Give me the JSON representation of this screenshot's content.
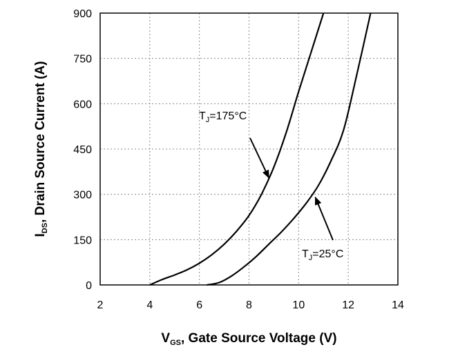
{
  "chart_data": {
    "type": "line",
    "title": "",
    "xlabel": {
      "main": "V",
      "sub": "GS",
      "rest": ", Gate Source Voltage (V)"
    },
    "ylabel": {
      "main": "I",
      "sub": "DS",
      "rest": ", Drain Source Current (A)"
    },
    "xlim": [
      2,
      14
    ],
    "ylim": [
      0,
      900
    ],
    "xticks": [
      "2",
      "4",
      "6",
      "8",
      "10",
      "12",
      "14"
    ],
    "yticks": [
      "0",
      "150",
      "300",
      "450",
      "600",
      "750",
      "900"
    ],
    "grid": true,
    "legend": "none",
    "series": [
      {
        "name": "TJ=175°C",
        "x": [
          4.0,
          4.5,
          5.0,
          5.5,
          6.0,
          6.5,
          7.0,
          7.5,
          8.0,
          8.5,
          9.0,
          9.5,
          10.0,
          10.5,
          11.0
        ],
        "y": [
          0,
          18,
          33,
          50,
          72,
          100,
          135,
          178,
          230,
          300,
          390,
          505,
          640,
          770,
          900
        ]
      },
      {
        "name": "TJ=25°C",
        "x": [
          6.3,
          6.8,
          7.3,
          7.8,
          8.3,
          8.8,
          9.3,
          9.8,
          10.3,
          10.8,
          11.3,
          11.8,
          12.3,
          12.9
        ],
        "y": [
          0,
          8,
          30,
          60,
          95,
          135,
          175,
          220,
          270,
          330,
          410,
          510,
          680,
          900
        ]
      }
    ],
    "annotations": [
      {
        "main": "T",
        "sub": "J",
        "rest": "=175°C",
        "points_to": {
          "x": 8.8,
          "y": 350
        }
      },
      {
        "main": "T",
        "sub": "J",
        "rest": "=25°C",
        "points_to": {
          "x": 10.7,
          "y": 295
        }
      }
    ]
  }
}
